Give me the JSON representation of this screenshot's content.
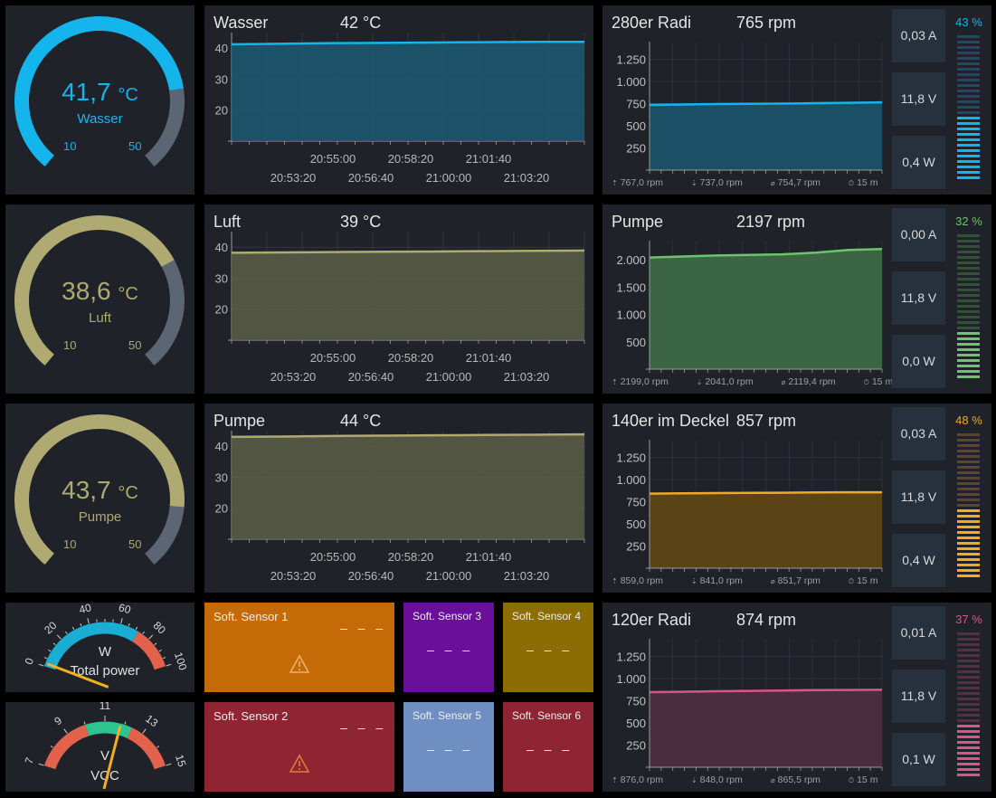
{
  "gauges": [
    {
      "value": "41,7",
      "unit": "°C",
      "name": "Wasser",
      "min": "10",
      "max": "50",
      "color": "#14b4ec",
      "fraction": 0.79
    },
    {
      "value": "38,6",
      "unit": "°C",
      "name": "Luft",
      "min": "10",
      "max": "50",
      "color": "#aeaa72",
      "fraction": 0.72
    },
    {
      "value": "43,7",
      "unit": "°C",
      "name": "Pumpe",
      "min": "10",
      "max": "50",
      "color": "#aeaa72",
      "fraction": 0.84
    }
  ],
  "temp_charts": [
    {
      "title": "Wasser",
      "current": "42 °C",
      "color": "#14b4ec",
      "fill": "#1b5a72",
      "chart_data": {
        "type": "area",
        "yticks": [
          "40",
          "30",
          "20"
        ],
        "ylim": [
          10,
          45
        ],
        "xticks_top": [
          "20:55:00",
          "20:58:20",
          "21:01:40"
        ],
        "xticks_bottom": [
          "20:53:20",
          "20:56:40",
          "21:00:00",
          "21:03:20"
        ],
        "values": [
          41.2,
          41.4,
          41.6,
          41.7,
          41.8,
          41.9,
          42.0,
          42.0
        ]
      }
    },
    {
      "title": "Luft",
      "current": "39 °C",
      "color": "#aeaa72",
      "fill": "#5d5e48",
      "chart_data": {
        "type": "area",
        "yticks": [
          "40",
          "30",
          "20"
        ],
        "ylim": [
          10,
          45
        ],
        "xticks_top": [
          "20:55:00",
          "20:58:20",
          "21:01:40"
        ],
        "xticks_bottom": [
          "20:53:20",
          "20:56:40",
          "21:00:00",
          "21:03:20"
        ],
        "values": [
          38.2,
          38.3,
          38.4,
          38.5,
          38.6,
          38.7,
          38.8,
          38.9
        ]
      }
    },
    {
      "title": "Pumpe",
      "current": "44 °C",
      "color": "#aeaa72",
      "fill": "#5d5e48",
      "chart_data": {
        "type": "area",
        "yticks": [
          "40",
          "30",
          "20"
        ],
        "ylim": [
          10,
          45
        ],
        "xticks_top": [
          "20:55:00",
          "20:58:20",
          "21:01:40"
        ],
        "xticks_bottom": [
          "20:53:20",
          "20:56:40",
          "21:00:00",
          "21:03:20"
        ],
        "values": [
          43.0,
          43.1,
          43.3,
          43.4,
          43.5,
          43.6,
          43.7,
          43.8
        ]
      }
    }
  ],
  "fans": [
    {
      "title": "280er Radi",
      "current": "765 rpm",
      "color": "#14b4ec",
      "fill": "#1b4f66",
      "amps": "0,03 A",
      "volts": "11,8 V",
      "watts": "0,4 W",
      "percent_label": "43 %",
      "percent": 43,
      "stats": {
        "max": "767,0 rpm",
        "min": "737,0 rpm",
        "avg": "754,7 rpm",
        "span": "15 m"
      },
      "chart_data": {
        "type": "area",
        "yticks": [
          "1.250",
          "1.000",
          "750",
          "500",
          "250"
        ],
        "ylim": [
          0,
          1450
        ],
        "values": [
          737,
          740,
          745,
          748,
          750,
          755,
          760,
          765
        ]
      }
    },
    {
      "title": "Pumpe",
      "current": "2197 rpm",
      "color": "#6cc46c",
      "fill": "#3c6544",
      "amps": "0,00 A",
      "volts": "11,8 V",
      "watts": "0,0 W",
      "percent_label": "32 %",
      "percent": 32,
      "stats": {
        "max": "2199,0 rpm",
        "min": "2041,0 rpm",
        "avg": "2119,4 rpm",
        "span": "15 m"
      },
      "chart_data": {
        "type": "area",
        "yticks": [
          "2.000",
          "1.500",
          "1.000",
          "500"
        ],
        "ylim": [
          0,
          2350
        ],
        "values": [
          2041,
          2060,
          2080,
          2090,
          2100,
          2130,
          2180,
          2197
        ]
      }
    },
    {
      "title": "140er im Deckel",
      "current": "857 rpm",
      "color": "#f0aa24",
      "fill": "#5a4416",
      "amps": "0,03 A",
      "volts": "11,8 V",
      "watts": "0,4 W",
      "percent_label": "48 %",
      "percent": 48,
      "stats": {
        "max": "859,0 rpm",
        "min": "841,0 rpm",
        "avg": "851,7 rpm",
        "span": "15 m"
      },
      "chart_data": {
        "type": "area",
        "yticks": [
          "1.250",
          "1.000",
          "750",
          "500",
          "250"
        ],
        "ylim": [
          0,
          1450
        ],
        "values": [
          841,
          845,
          848,
          850,
          852,
          855,
          857,
          857
        ]
      }
    },
    {
      "title": "120er Radi",
      "current": "874 rpm",
      "color": "#d8558a",
      "fill": "#4a2e3e",
      "amps": "0,01 A",
      "volts": "11,8 V",
      "watts": "0,1 W",
      "percent_label": "37 %",
      "percent": 37,
      "stats": {
        "max": "876,0 rpm",
        "min": "848,0 rpm",
        "avg": "865,5 rpm",
        "span": "15 m"
      },
      "chart_data": {
        "type": "area",
        "yticks": [
          "1.250",
          "1.000",
          "750",
          "500",
          "250"
        ],
        "ylim": [
          0,
          1450
        ],
        "values": [
          848,
          852,
          858,
          862,
          866,
          870,
          872,
          874
        ]
      }
    }
  ],
  "power_gauge": {
    "unit": "W",
    "name": "Total power",
    "ticks": [
      "0",
      "20",
      "40",
      "60",
      "80",
      "100"
    ],
    "value": 2
  },
  "vcc_gauge": {
    "unit": "V",
    "name": "VCC",
    "ticks": [
      "7",
      "9",
      "11",
      "13",
      "15"
    ],
    "value": 11.8
  },
  "sensors": [
    {
      "name": "Soft. Sensor 1",
      "value": "– – –",
      "color": "#c46a06",
      "warning": true
    },
    {
      "name": "Soft. Sensor 2",
      "value": "– – –",
      "color": "#8f2432",
      "warning": true
    },
    {
      "name": "Soft. Sensor 3",
      "value": "– – –",
      "color": "#6a0f9a",
      "warning": false
    },
    {
      "name": "Soft. Sensor 4",
      "value": "– – –",
      "color": "#8c6d03",
      "warning": false
    },
    {
      "name": "Soft. Sensor 5",
      "value": "– – –",
      "color": "#6f8fc2",
      "warning": false
    },
    {
      "name": "Soft. Sensor 6",
      "value": "– – –",
      "color": "#8f2432",
      "warning": false
    }
  ],
  "icons": {
    "warning": "warning-icon",
    "max": "arrow-up-icon",
    "min": "arrow-down-icon",
    "avg": "average-icon",
    "span": "clock-icon"
  }
}
